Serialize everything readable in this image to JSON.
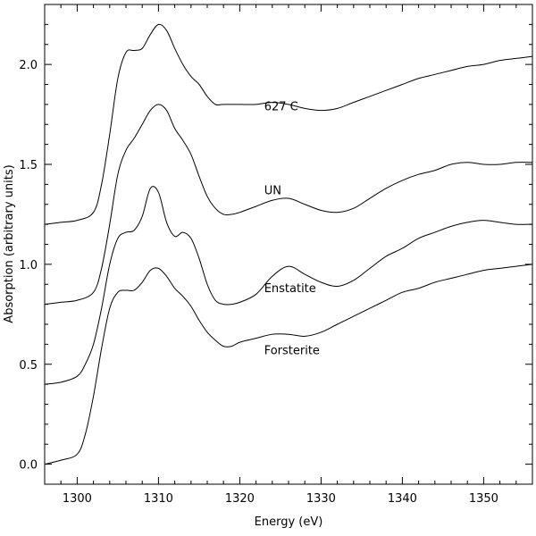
{
  "chart_data": {
    "type": "line",
    "xlabel": "Energy (eV)",
    "ylabel": "Absorption (arbitrary units)",
    "xlim": [
      1296,
      1356
    ],
    "ylim": [
      -0.1,
      2.3
    ],
    "x_ticks": [
      1300,
      1310,
      1320,
      1330,
      1340,
      1350
    ],
    "x_tick_labels": [
      "1300",
      "1310",
      "1320",
      "1330",
      "1340",
      "1350"
    ],
    "y_ticks": [
      0.0,
      0.5,
      1.0,
      1.5,
      2.0
    ],
    "y_tick_labels": [
      "0.0",
      "0.5",
      "1.0",
      "1.5",
      "2.0"
    ],
    "grid": false,
    "series": [
      {
        "name": "627 C",
        "label_at": [
          1323,
          1.77
        ],
        "points": [
          [
            1296,
            1.2
          ],
          [
            1298,
            1.21
          ],
          [
            1300,
            1.22
          ],
          [
            1302,
            1.26
          ],
          [
            1303,
            1.4
          ],
          [
            1304,
            1.65
          ],
          [
            1305,
            1.93
          ],
          [
            1306,
            2.06
          ],
          [
            1307,
            2.07
          ],
          [
            1308,
            2.08
          ],
          [
            1309,
            2.15
          ],
          [
            1310,
            2.2
          ],
          [
            1311,
            2.17
          ],
          [
            1312,
            2.08
          ],
          [
            1313,
            2.0
          ],
          [
            1314,
            1.94
          ],
          [
            1315,
            1.9
          ],
          [
            1316,
            1.84
          ],
          [
            1317,
            1.8
          ],
          [
            1318,
            1.8
          ],
          [
            1320,
            1.8
          ],
          [
            1322,
            1.8
          ],
          [
            1324,
            1.81
          ],
          [
            1326,
            1.8
          ],
          [
            1328,
            1.78
          ],
          [
            1330,
            1.77
          ],
          [
            1332,
            1.78
          ],
          [
            1334,
            1.81
          ],
          [
            1336,
            1.84
          ],
          [
            1338,
            1.87
          ],
          [
            1340,
            1.9
          ],
          [
            1342,
            1.93
          ],
          [
            1344,
            1.95
          ],
          [
            1346,
            1.97
          ],
          [
            1348,
            1.99
          ],
          [
            1350,
            2.0
          ],
          [
            1352,
            2.02
          ],
          [
            1354,
            2.03
          ],
          [
            1356,
            2.04
          ]
        ]
      },
      {
        "name": "UN",
        "label_at": [
          1323,
          1.35
        ],
        "points": [
          [
            1296,
            0.8
          ],
          [
            1298,
            0.81
          ],
          [
            1300,
            0.82
          ],
          [
            1302,
            0.86
          ],
          [
            1303,
            0.98
          ],
          [
            1304,
            1.2
          ],
          [
            1305,
            1.45
          ],
          [
            1306,
            1.57
          ],
          [
            1307,
            1.63
          ],
          [
            1308,
            1.7
          ],
          [
            1309,
            1.77
          ],
          [
            1310,
            1.8
          ],
          [
            1311,
            1.77
          ],
          [
            1312,
            1.68
          ],
          [
            1313,
            1.62
          ],
          [
            1314,
            1.55
          ],
          [
            1315,
            1.44
          ],
          [
            1316,
            1.34
          ],
          [
            1317,
            1.28
          ],
          [
            1318,
            1.25
          ],
          [
            1319,
            1.25
          ],
          [
            1320,
            1.26
          ],
          [
            1322,
            1.29
          ],
          [
            1324,
            1.32
          ],
          [
            1326,
            1.33
          ],
          [
            1328,
            1.3
          ],
          [
            1330,
            1.27
          ],
          [
            1332,
            1.26
          ],
          [
            1334,
            1.28
          ],
          [
            1336,
            1.33
          ],
          [
            1338,
            1.38
          ],
          [
            1340,
            1.42
          ],
          [
            1342,
            1.45
          ],
          [
            1344,
            1.47
          ],
          [
            1346,
            1.5
          ],
          [
            1348,
            1.51
          ],
          [
            1350,
            1.5
          ],
          [
            1352,
            1.5
          ],
          [
            1354,
            1.51
          ],
          [
            1356,
            1.51
          ]
        ]
      },
      {
        "name": "Enstatite",
        "label_at": [
          1323,
          0.86
        ],
        "points": [
          [
            1296,
            0.4
          ],
          [
            1298,
            0.41
          ],
          [
            1300,
            0.44
          ],
          [
            1301,
            0.5
          ],
          [
            1302,
            0.6
          ],
          [
            1303,
            0.78
          ],
          [
            1304,
            1.0
          ],
          [
            1305,
            1.13
          ],
          [
            1306,
            1.16
          ],
          [
            1307,
            1.17
          ],
          [
            1308,
            1.24
          ],
          [
            1309,
            1.38
          ],
          [
            1310,
            1.36
          ],
          [
            1311,
            1.21
          ],
          [
            1312,
            1.14
          ],
          [
            1313,
            1.16
          ],
          [
            1314,
            1.13
          ],
          [
            1315,
            1.03
          ],
          [
            1316,
            0.9
          ],
          [
            1317,
            0.82
          ],
          [
            1318,
            0.8
          ],
          [
            1319,
            0.8
          ],
          [
            1320,
            0.81
          ],
          [
            1322,
            0.85
          ],
          [
            1324,
            0.94
          ],
          [
            1326,
            0.99
          ],
          [
            1328,
            0.95
          ],
          [
            1330,
            0.91
          ],
          [
            1332,
            0.89
          ],
          [
            1334,
            0.92
          ],
          [
            1336,
            0.98
          ],
          [
            1338,
            1.04
          ],
          [
            1340,
            1.08
          ],
          [
            1342,
            1.13
          ],
          [
            1344,
            1.16
          ],
          [
            1346,
            1.19
          ],
          [
            1348,
            1.21
          ],
          [
            1350,
            1.22
          ],
          [
            1352,
            1.21
          ],
          [
            1354,
            1.2
          ],
          [
            1356,
            1.2
          ]
        ]
      },
      {
        "name": "Forsterite",
        "label_at": [
          1323,
          0.55
        ],
        "points": [
          [
            1296,
            0.0
          ],
          [
            1298,
            0.02
          ],
          [
            1300,
            0.05
          ],
          [
            1301,
            0.15
          ],
          [
            1302,
            0.34
          ],
          [
            1303,
            0.58
          ],
          [
            1304,
            0.78
          ],
          [
            1305,
            0.86
          ],
          [
            1306,
            0.87
          ],
          [
            1307,
            0.87
          ],
          [
            1308,
            0.91
          ],
          [
            1309,
            0.97
          ],
          [
            1310,
            0.98
          ],
          [
            1311,
            0.94
          ],
          [
            1312,
            0.88
          ],
          [
            1313,
            0.84
          ],
          [
            1314,
            0.79
          ],
          [
            1315,
            0.72
          ],
          [
            1316,
            0.66
          ],
          [
            1317,
            0.62
          ],
          [
            1318,
            0.59
          ],
          [
            1319,
            0.59
          ],
          [
            1320,
            0.61
          ],
          [
            1322,
            0.63
          ],
          [
            1324,
            0.65
          ],
          [
            1326,
            0.65
          ],
          [
            1328,
            0.64
          ],
          [
            1330,
            0.66
          ],
          [
            1332,
            0.7
          ],
          [
            1334,
            0.74
          ],
          [
            1336,
            0.78
          ],
          [
            1338,
            0.82
          ],
          [
            1340,
            0.86
          ],
          [
            1342,
            0.88
          ],
          [
            1344,
            0.91
          ],
          [
            1346,
            0.93
          ],
          [
            1348,
            0.95
          ],
          [
            1350,
            0.97
          ],
          [
            1352,
            0.98
          ],
          [
            1354,
            0.99
          ],
          [
            1356,
            1.0
          ]
        ]
      }
    ]
  }
}
